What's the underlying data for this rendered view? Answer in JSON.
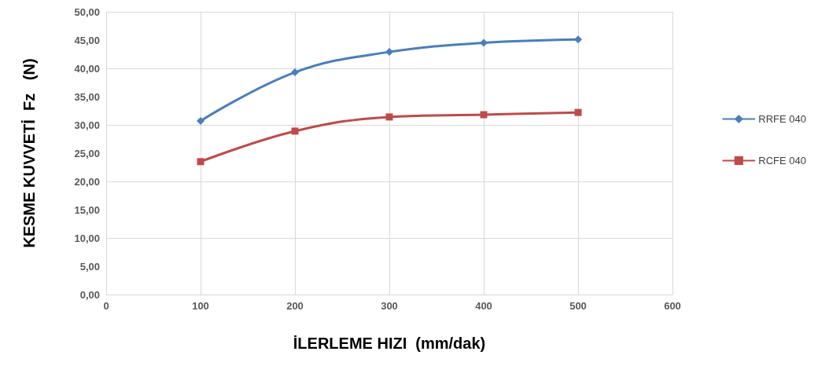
{
  "chart_data": {
    "type": "line",
    "xlabel": "İLERLEME HIZI  (mm/dak)",
    "ylabel": "KESME KUVVETİ  Fz   (N)",
    "x": [
      100,
      200,
      300,
      400,
      500
    ],
    "series": [
      {
        "name": "RRFE 040",
        "color": "#4a7ebb",
        "marker": "diamond",
        "values": [
          30.7,
          39.3,
          42.9,
          44.5,
          45.1
        ]
      },
      {
        "name": "RCFE 040",
        "color": "#be4b48",
        "marker": "square",
        "values": [
          23.5,
          28.9,
          31.4,
          31.8,
          32.2
        ]
      }
    ],
    "xlim": [
      0,
      600
    ],
    "xticks": [
      0,
      100,
      200,
      300,
      400,
      500,
      600
    ],
    "ylim": [
      0,
      50
    ],
    "yticks": [
      {
        "value": 0,
        "label": "0,00"
      },
      {
        "value": 5,
        "label": "5,00"
      },
      {
        "value": 10,
        "label": "10,00"
      },
      {
        "value": 15,
        "label": "15,00"
      },
      {
        "value": 20,
        "label": "20,00"
      },
      {
        "value": 25,
        "label": "25,00"
      },
      {
        "value": 30,
        "label": "30,00"
      },
      {
        "value": 35,
        "label": "35,00"
      },
      {
        "value": 40,
        "label": "40,00"
      },
      {
        "value": 45,
        "label": "45,00"
      },
      {
        "value": 50,
        "label": "50,00"
      }
    ],
    "grid": true,
    "legend": "right",
    "line_style": "solid"
  }
}
